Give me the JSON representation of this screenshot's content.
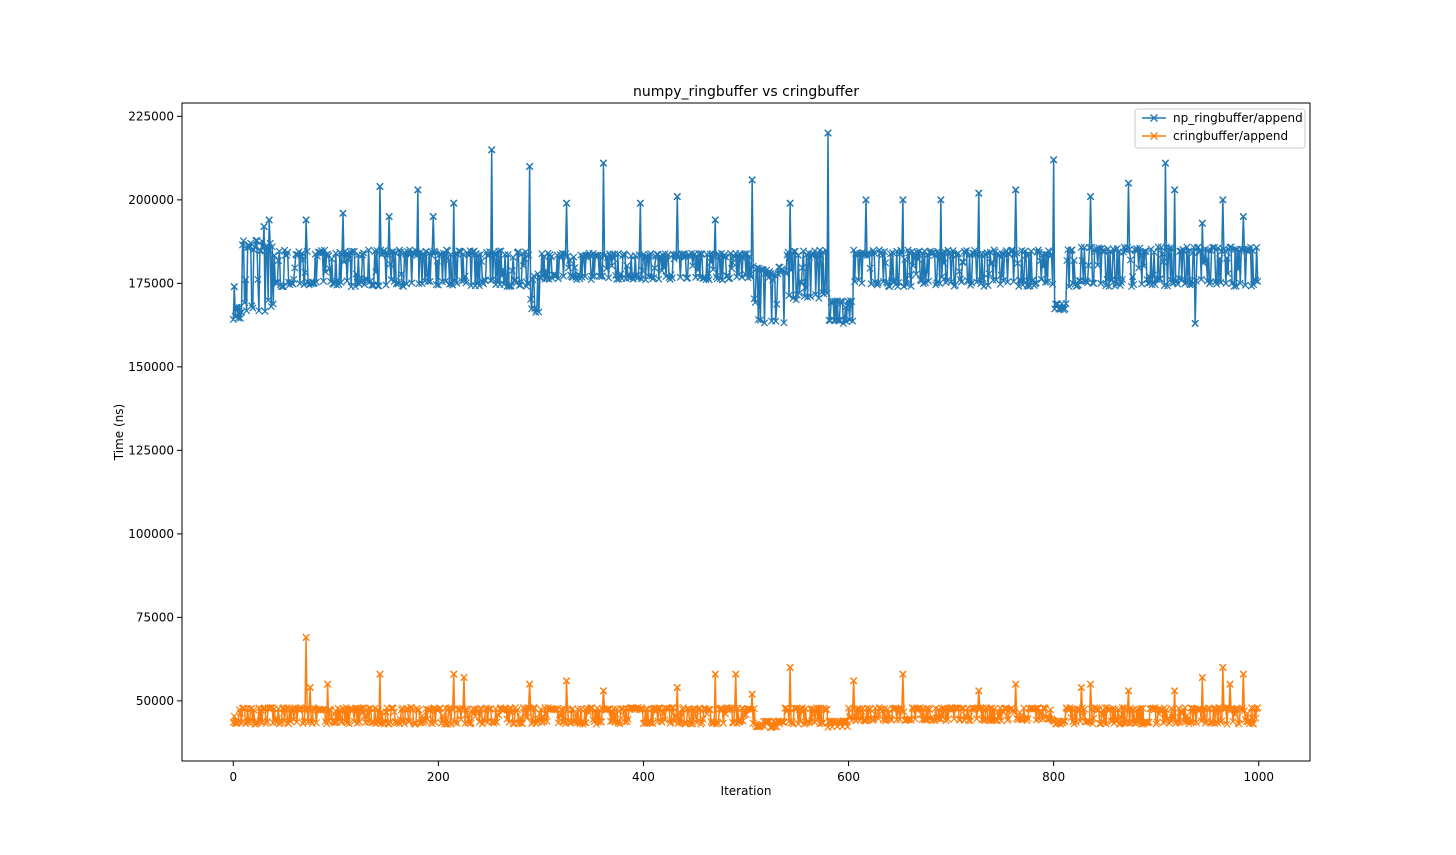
{
  "chart_data": {
    "type": "line",
    "title": "numpy_ringbuffer vs cringbuffer",
    "xlabel": "Iteration",
    "ylabel": "Time (ns)",
    "xlim": [
      -50,
      1050
    ],
    "ylim": [
      32000,
      229000
    ],
    "xticks": [
      0,
      200,
      400,
      600,
      800,
      1000
    ],
    "yticks": [
      50000,
      75000,
      100000,
      125000,
      150000,
      175000,
      200000,
      225000
    ],
    "xtick_labels": [
      "0",
      "200",
      "400",
      "600",
      "800",
      "1000"
    ],
    "ytick_labels": [
      "50000",
      "75000",
      "100000",
      "125000",
      "150000",
      "175000",
      "200000",
      "225000"
    ],
    "grid": false,
    "legend_position": "top-right",
    "n_points": 1000,
    "series": [
      {
        "name": "np_ringbuffer/append",
        "color": "#1f77b4",
        "marker": "x",
        "segments": [
          {
            "start": 0,
            "end": 8,
            "low": 164000,
            "high": 168000
          },
          {
            "start": 8,
            "end": 40,
            "low": 166000,
            "high": 188000
          },
          {
            "start": 40,
            "end": 290,
            "low": 174000,
            "high": 185000
          },
          {
            "start": 290,
            "end": 300,
            "low": 165000,
            "high": 178000
          },
          {
            "start": 300,
            "end": 508,
            "low": 176000,
            "high": 184000
          },
          {
            "start": 508,
            "end": 540,
            "low": 163000,
            "high": 180000
          },
          {
            "start": 540,
            "end": 580,
            "low": 170000,
            "high": 185000
          },
          {
            "start": 580,
            "end": 605,
            "low": 163000,
            "high": 170000
          },
          {
            "start": 605,
            "end": 800,
            "low": 174000,
            "high": 185000
          },
          {
            "start": 800,
            "end": 813,
            "low": 167000,
            "high": 169000
          },
          {
            "start": 813,
            "end": 1000,
            "low": 174000,
            "high": 186000
          }
        ],
        "spikes": [
          {
            "x": 1,
            "y": 174000
          },
          {
            "x": 30,
            "y": 192000
          },
          {
            "x": 35,
            "y": 194000
          },
          {
            "x": 71,
            "y": 194000
          },
          {
            "x": 107,
            "y": 196000
          },
          {
            "x": 143,
            "y": 204000
          },
          {
            "x": 152,
            "y": 195000
          },
          {
            "x": 180,
            "y": 203000
          },
          {
            "x": 195,
            "y": 195000
          },
          {
            "x": 215,
            "y": 199000
          },
          {
            "x": 252,
            "y": 215000
          },
          {
            "x": 289,
            "y": 210000
          },
          {
            "x": 325,
            "y": 199000
          },
          {
            "x": 361,
            "y": 211000
          },
          {
            "x": 397,
            "y": 199000
          },
          {
            "x": 433,
            "y": 201000
          },
          {
            "x": 470,
            "y": 194000
          },
          {
            "x": 506,
            "y": 206000
          },
          {
            "x": 543,
            "y": 199000
          },
          {
            "x": 580,
            "y": 220000
          },
          {
            "x": 617,
            "y": 200000
          },
          {
            "x": 653,
            "y": 200000
          },
          {
            "x": 690,
            "y": 200000
          },
          {
            "x": 727,
            "y": 202000
          },
          {
            "x": 763,
            "y": 203000
          },
          {
            "x": 800,
            "y": 212000
          },
          {
            "x": 836,
            "y": 201000
          },
          {
            "x": 873,
            "y": 205000
          },
          {
            "x": 909,
            "y": 211000
          },
          {
            "x": 918,
            "y": 203000
          },
          {
            "x": 945,
            "y": 193000
          },
          {
            "x": 965,
            "y": 200000
          },
          {
            "x": 985,
            "y": 195000
          },
          {
            "x": 938,
            "y": 163000
          }
        ]
      },
      {
        "name": "cringbuffer/append",
        "color": "#ff7f0e",
        "marker": "x",
        "segments": [
          {
            "start": 0,
            "end": 510,
            "low": 43000,
            "high": 48000
          },
          {
            "start": 510,
            "end": 535,
            "low": 42000,
            "high": 44000
          },
          {
            "start": 535,
            "end": 580,
            "low": 43000,
            "high": 48000
          },
          {
            "start": 580,
            "end": 600,
            "low": 42000,
            "high": 44000
          },
          {
            "start": 600,
            "end": 800,
            "low": 44000,
            "high": 48000
          },
          {
            "start": 800,
            "end": 812,
            "low": 43000,
            "high": 44000
          },
          {
            "start": 812,
            "end": 1000,
            "low": 43000,
            "high": 48000
          }
        ],
        "spikes": [
          {
            "x": 71,
            "y": 69000
          },
          {
            "x": 75,
            "y": 54000
          },
          {
            "x": 92,
            "y": 55000
          },
          {
            "x": 143,
            "y": 58000
          },
          {
            "x": 215,
            "y": 58000
          },
          {
            "x": 225,
            "y": 57000
          },
          {
            "x": 289,
            "y": 55000
          },
          {
            "x": 325,
            "y": 56000
          },
          {
            "x": 361,
            "y": 53000
          },
          {
            "x": 433,
            "y": 54000
          },
          {
            "x": 470,
            "y": 58000
          },
          {
            "x": 490,
            "y": 58000
          },
          {
            "x": 506,
            "y": 52000
          },
          {
            "x": 543,
            "y": 60000
          },
          {
            "x": 605,
            "y": 56000
          },
          {
            "x": 653,
            "y": 58000
          },
          {
            "x": 727,
            "y": 53000
          },
          {
            "x": 763,
            "y": 55000
          },
          {
            "x": 827,
            "y": 54000
          },
          {
            "x": 836,
            "y": 55000
          },
          {
            "x": 873,
            "y": 53000
          },
          {
            "x": 918,
            "y": 53000
          },
          {
            "x": 945,
            "y": 57000
          },
          {
            "x": 965,
            "y": 60000
          },
          {
            "x": 972,
            "y": 55000
          },
          {
            "x": 985,
            "y": 58000
          }
        ]
      }
    ]
  }
}
